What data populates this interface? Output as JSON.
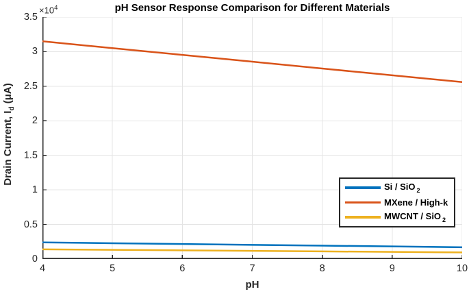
{
  "chart": {
    "title": "pH Sensor Response Comparison for Different Materials",
    "multiplier": {
      "base": "×10",
      "exp": "4"
    },
    "xlabel": "pH",
    "ylabel": {
      "pre": "Drain Current, I",
      "sub": "d",
      "post": " (μA)"
    }
  },
  "chart_data": {
    "type": "line",
    "title": "pH Sensor Response Comparison for Different Materials",
    "xlabel": "pH",
    "ylabel": "Drain Current, I_d (μA)",
    "y_axis_multiplier": "×10^4",
    "x": [
      4,
      5,
      6,
      7,
      8,
      9,
      10
    ],
    "series": [
      {
        "name": "Si / SiO_2",
        "label_base": "Si / SiO",
        "label_sub": "2",
        "color": "#0072BD",
        "values": [
          2400,
          2283,
          2167,
          2050,
          1933,
          1817,
          1700
        ]
      },
      {
        "name": "MXene / High-k",
        "label_base": "MXene / High-k",
        "label_sub": "",
        "color": "#D95319",
        "values": [
          31500,
          30517,
          29533,
          28550,
          27567,
          26583,
          25600
        ]
      },
      {
        "name": "MWCNT / SiO_2",
        "label_base": "MWCNT / SiO",
        "label_sub": "2",
        "color": "#EDB120",
        "values": [
          1400,
          1325,
          1250,
          1175,
          1100,
          1025,
          950
        ]
      }
    ],
    "xlim": [
      4,
      10
    ],
    "ylim": [
      0,
      35000
    ],
    "xticks": [
      4,
      5,
      6,
      7,
      8,
      9,
      10
    ],
    "xtick_labels": [
      "4",
      "5",
      "6",
      "7",
      "8",
      "9",
      "10"
    ],
    "ytick_values": [
      0,
      5000,
      10000,
      15000,
      20000,
      25000,
      30000,
      35000
    ],
    "ytick_labels": [
      "0",
      "0.5",
      "1",
      "1.5",
      "2",
      "2.5",
      "3",
      "3.5"
    ],
    "grid": true,
    "legend_position": "inside-right-middle",
    "line_width": 2.5
  },
  "colors": {
    "axis": "#262626",
    "grid": "#E4E4E4",
    "background": "#FFFFFF",
    "legend_border": "#262626",
    "title_text": "#000000"
  }
}
